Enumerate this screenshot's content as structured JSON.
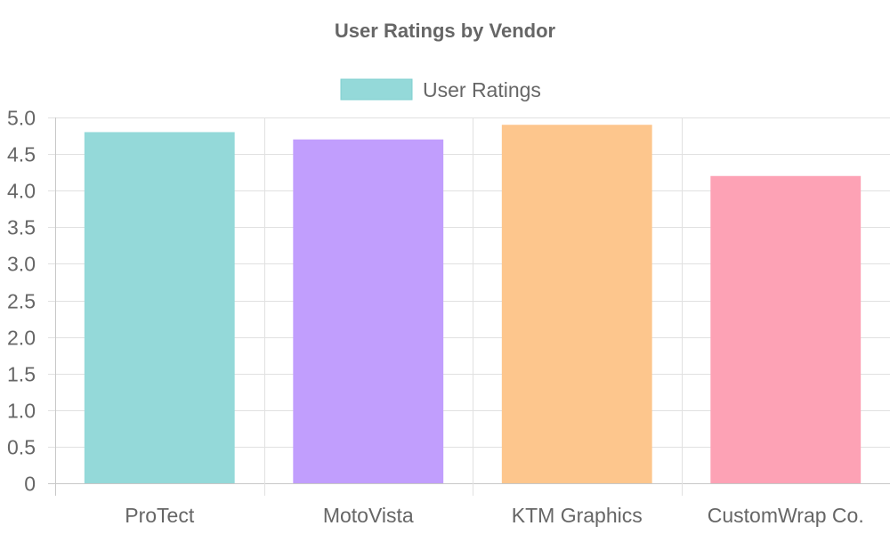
{
  "chart_data": {
    "type": "bar",
    "title": "User Ratings by Vendor",
    "categories": [
      "ProTect",
      "MotoVista",
      "KTM Graphics",
      "CustomWrap Co."
    ],
    "series": [
      {
        "name": "User Ratings",
        "values": [
          4.8,
          4.7,
          4.9,
          4.2
        ]
      }
    ],
    "bar_colors": [
      "#94d9d9",
      "#c19efd",
      "#fdc68d",
      "#fda2b5"
    ],
    "legend_color": "#94d9d9",
    "legend_border_color": "#7fd0d0",
    "xlabel": "",
    "ylabel": "",
    "ylim": [
      0,
      5
    ],
    "yticks": [
      "0",
      "0.5",
      "1.0",
      "1.5",
      "2.0",
      "2.5",
      "3.0",
      "3.5",
      "4.0",
      "4.5",
      "5.0"
    ],
    "grid": true,
    "legend_position": "top"
  }
}
